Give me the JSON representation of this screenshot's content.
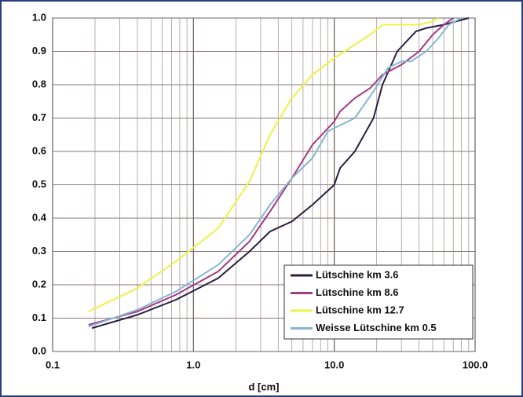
{
  "chart_data": {
    "type": "line",
    "x_label": "d [cm]",
    "xscale": "log",
    "grid": true,
    "xlim": [
      0.1,
      100
    ],
    "ylim": [
      0,
      1
    ],
    "xticks": [
      {
        "value": 0.1,
        "label": "0.1"
      },
      {
        "value": 1,
        "label": "1.0"
      },
      {
        "value": 10,
        "label": "10.0"
      },
      {
        "value": 100,
        "label": "100.0"
      }
    ],
    "x_minor_ticks": [
      0.2,
      0.3,
      0.4,
      0.5,
      0.6,
      0.7,
      0.8,
      0.9,
      2,
      3,
      4,
      5,
      6,
      7,
      8,
      9,
      20,
      30,
      40,
      50,
      60,
      70,
      80,
      90
    ],
    "yticks": [
      {
        "value": 0,
        "label": "0.0"
      },
      {
        "value": 0.1,
        "label": "0.1"
      },
      {
        "value": 0.2,
        "label": "0.2"
      },
      {
        "value": 0.3,
        "label": "0.3"
      },
      {
        "value": 0.4,
        "label": "0.4"
      },
      {
        "value": 0.5,
        "label": "0.5"
      },
      {
        "value": 0.6,
        "label": "0.6"
      },
      {
        "value": 0.7,
        "label": "0.7"
      },
      {
        "value": 0.8,
        "label": "0.8"
      },
      {
        "value": 0.9,
        "label": "0.9"
      },
      {
        "value": 1,
        "label": "1.0"
      }
    ],
    "series": [
      {
        "name": "Lütschine km 3.6",
        "color": "#2b1f3f",
        "x": [
          0.19,
          0.4,
          0.75,
          1.5,
          2.5,
          3.5,
          5,
          7,
          10,
          11,
          14,
          19,
          22,
          28,
          38,
          45,
          60,
          90
        ],
        "values": [
          0.07,
          0.11,
          0.155,
          0.22,
          0.3,
          0.36,
          0.39,
          0.44,
          0.5,
          0.55,
          0.6,
          0.7,
          0.8,
          0.9,
          0.96,
          0.97,
          0.98,
          1.0
        ]
      },
      {
        "name": "Lütschine km 8.6",
        "color": "#a23a82",
        "x": [
          0.18,
          0.4,
          0.75,
          1.5,
          2.5,
          3.5,
          5,
          7,
          10,
          11,
          14,
          18,
          22,
          30,
          40,
          50,
          60,
          70
        ],
        "values": [
          0.08,
          0.12,
          0.17,
          0.24,
          0.33,
          0.42,
          0.52,
          0.62,
          0.69,
          0.72,
          0.76,
          0.79,
          0.83,
          0.86,
          0.9,
          0.95,
          0.98,
          1.0
        ]
      },
      {
        "name": "Lütschine km 12.7",
        "color": "#f0f044",
        "x": [
          0.18,
          0.4,
          0.75,
          1.5,
          2.5,
          3.5,
          5,
          7,
          10,
          14,
          18,
          22,
          40,
          50,
          55
        ],
        "values": [
          0.12,
          0.19,
          0.27,
          0.37,
          0.51,
          0.65,
          0.76,
          0.83,
          0.88,
          0.92,
          0.95,
          0.98,
          0.98,
          0.99,
          1.0
        ]
      },
      {
        "name": "Weisse Lütschine km 0.5",
        "color": "#86b6d4",
        "x": [
          0.18,
          0.4,
          0.75,
          1.5,
          2.5,
          3.5,
          5,
          7,
          9,
          10,
          14,
          19,
          24,
          30,
          35,
          45,
          55,
          65,
          80
        ],
        "values": [
          0.075,
          0.125,
          0.18,
          0.26,
          0.35,
          0.44,
          0.52,
          0.58,
          0.66,
          0.67,
          0.7,
          0.78,
          0.85,
          0.87,
          0.87,
          0.9,
          0.94,
          0.98,
          1.0
        ]
      }
    ]
  }
}
